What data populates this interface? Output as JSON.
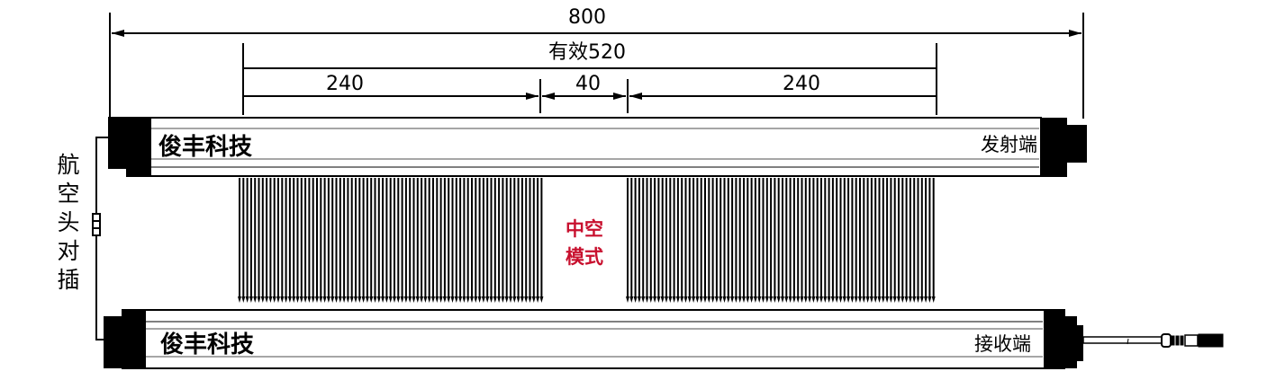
{
  "dimensions": {
    "total": "800",
    "effective": "有效520",
    "left_segment": "240",
    "gap": "40",
    "right_segment": "240"
  },
  "emitter": {
    "brand": "俊丰科技",
    "label": "发射端"
  },
  "receiver": {
    "brand": "俊丰科技",
    "label": "接收端"
  },
  "mode": {
    "line1": "中空",
    "line2": "模式",
    "color": "#c8102e"
  },
  "connector_label": [
    "航",
    "空",
    "头",
    "对",
    "插"
  ]
}
